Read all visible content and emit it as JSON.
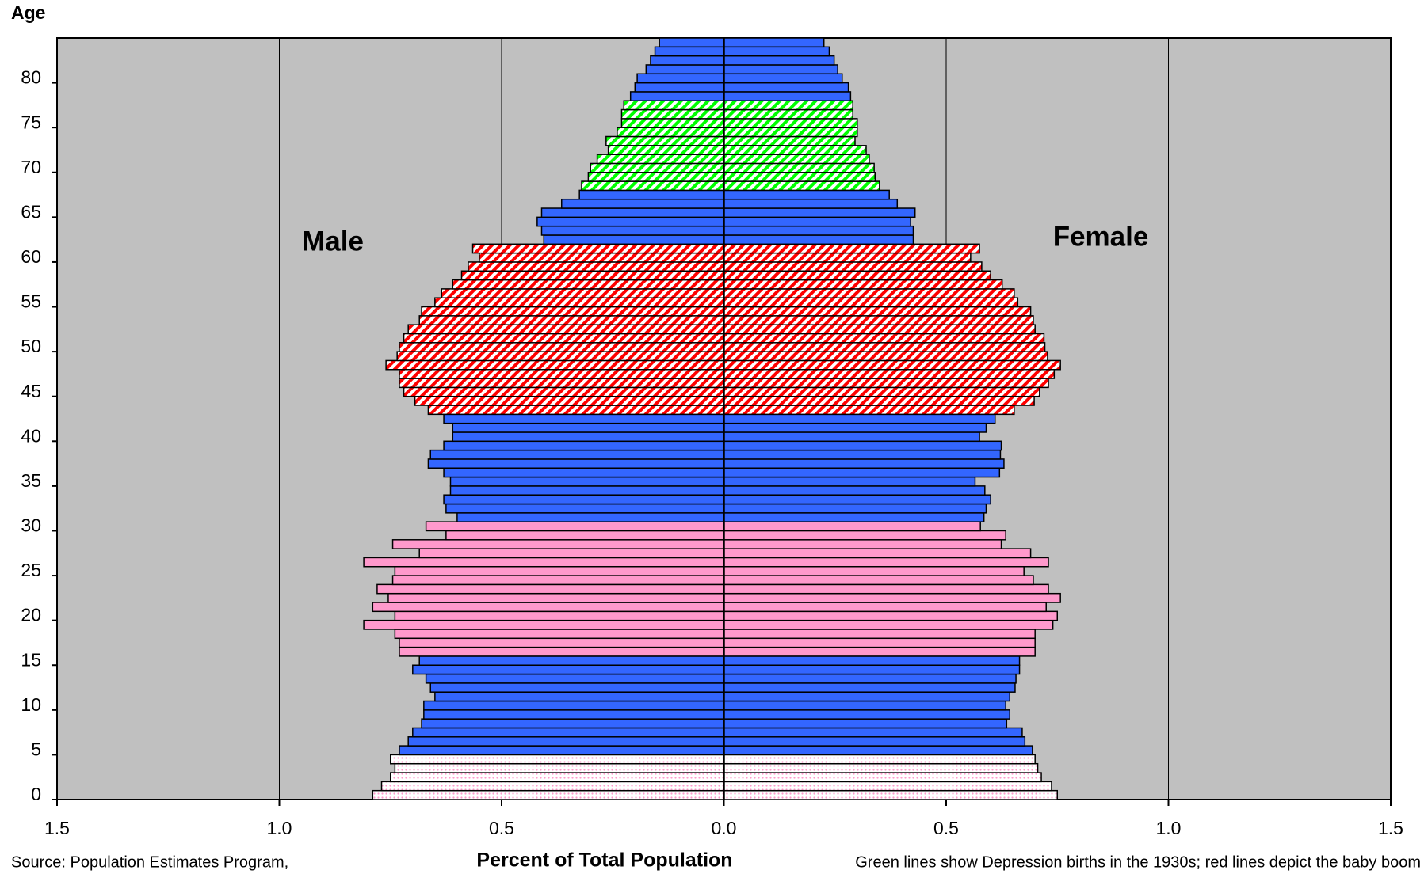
{
  "chart_data": {
    "type": "population-pyramid",
    "y_label": "Age",
    "x_label": "Percent of Total Population",
    "source": "Source: Population Estimates Program,",
    "note": "Green lines show Depression births in the 1930s; red lines depict the baby boom",
    "xlim": [
      -1.5,
      1.5
    ],
    "xticks": [
      {
        "value": -1.5,
        "label": "1.5"
      },
      {
        "value": -1,
        "label": "1.0"
      },
      {
        "value": -0.5,
        "label": "0.5"
      },
      {
        "value": 0,
        "label": "0.0"
      },
      {
        "value": 0.5,
        "label": "0.5"
      },
      {
        "value": 1,
        "label": "1.0"
      },
      {
        "value": 1.5,
        "label": "1.5"
      }
    ],
    "ylim": [
      0,
      85
    ],
    "yticks": [
      0,
      5,
      10,
      15,
      20,
      25,
      30,
      35,
      40,
      45,
      50,
      55,
      60,
      65,
      70,
      75,
      80
    ],
    "grid": true,
    "plot_color": "#c0c0c0",
    "hatched_colors": [
      "#ff0000",
      "#00ff00"
    ],
    "dotted_colors": [
      "#ff99cc"
    ],
    "ages": [
      0,
      1,
      2,
      3,
      4,
      5,
      6,
      7,
      8,
      9,
      10,
      11,
      12,
      13,
      14,
      15,
      16,
      17,
      18,
      19,
      20,
      21,
      22,
      23,
      24,
      25,
      26,
      27,
      28,
      29,
      30,
      31,
      32,
      33,
      34,
      35,
      36,
      37,
      38,
      39,
      40,
      41,
      42,
      43,
      44,
      45,
      46,
      47,
      48,
      49,
      50,
      51,
      52,
      53,
      54,
      55,
      56,
      57,
      58,
      59,
      60,
      61,
      62,
      63,
      64,
      65,
      66,
      67,
      68,
      69,
      70,
      71,
      72,
      73,
      74,
      75,
      76,
      77,
      78,
      79,
      80,
      81,
      82,
      83,
      84
    ],
    "bar_colors": [
      "#ff99cc",
      "#ff99cc",
      "#ff99cc",
      "#ff99cc",
      "#ff99cc",
      "#3366ff",
      "#3366ff",
      "#3366ff",
      "#3366ff",
      "#3366ff",
      "#3366ff",
      "#3366ff",
      "#3366ff",
      "#3366ff",
      "#3366ff",
      "#3366ff",
      "#ff99cc",
      "#ff99cc",
      "#ff99cc",
      "#ff99cc",
      "#ff99cc",
      "#ff99cc",
      "#ff99cc",
      "#ff99cc",
      "#ff99cc",
      "#ff99cc",
      "#ff99cc",
      "#ff99cc",
      "#ff99cc",
      "#ff99cc",
      "#ff99cc",
      "#3366ff",
      "#3366ff",
      "#3366ff",
      "#3366ff",
      "#3366ff",
      "#3366ff",
      "#3366ff",
      "#3366ff",
      "#3366ff",
      "#3366ff",
      "#3366ff",
      "#3366ff",
      "#ff0000",
      "#ff0000",
      "#ff0000",
      "#ff0000",
      "#ff0000",
      "#ff0000",
      "#ff0000",
      "#ff0000",
      "#ff0000",
      "#ff0000",
      "#ff0000",
      "#ff0000",
      "#ff0000",
      "#ff0000",
      "#ff0000",
      "#ff0000",
      "#ff0000",
      "#ff0000",
      "#ff0000",
      "#3366ff",
      "#3366ff",
      "#3366ff",
      "#3366ff",
      "#3366ff",
      "#3366ff",
      "#00ff00",
      "#00ff00",
      "#00ff00",
      "#00ff00",
      "#00ff00",
      "#00ff00",
      "#00ff00",
      "#00ff00",
      "#00ff00",
      "#00ff00",
      "#3366ff",
      "#3366ff",
      "#3366ff",
      "#3366ff",
      "#3366ff",
      "#3366ff",
      "#3366ff"
    ],
    "dotted_flags": [
      true,
      true,
      true,
      true,
      true,
      false,
      false,
      false,
      false,
      false,
      false,
      false,
      false,
      false,
      false,
      false,
      false,
      false,
      false,
      false,
      false,
      false,
      false,
      false,
      false,
      false,
      false,
      false,
      false,
      false,
      false,
      false,
      false,
      false,
      false,
      false,
      false,
      false,
      false,
      false,
      false,
      false,
      false,
      false,
      false,
      false,
      false,
      false,
      false,
      false,
      false,
      false,
      false,
      false,
      false,
      false,
      false,
      false,
      false,
      false,
      false,
      false,
      false,
      false,
      false,
      false,
      false,
      false,
      false,
      false,
      false,
      false,
      false,
      false,
      false,
      false,
      false,
      false,
      false,
      false,
      false,
      false,
      false,
      false,
      false
    ],
    "series": [
      {
        "name": "Male",
        "values": [
          0.79,
          0.77,
          0.75,
          0.74,
          0.75,
          0.73,
          0.71,
          0.7,
          0.68,
          0.675,
          0.675,
          0.65,
          0.66,
          0.67,
          0.7,
          0.685,
          0.73,
          0.73,
          0.74,
          0.81,
          0.74,
          0.79,
          0.755,
          0.78,
          0.745,
          0.74,
          0.81,
          0.685,
          0.745,
          0.625,
          0.67,
          0.6,
          0.625,
          0.63,
          0.615,
          0.615,
          0.63,
          0.665,
          0.66,
          0.63,
          0.61,
          0.61,
          0.63,
          0.665,
          0.695,
          0.72,
          0.73,
          0.73,
          0.76,
          0.735,
          0.73,
          0.72,
          0.71,
          0.685,
          0.68,
          0.65,
          0.635,
          0.61,
          0.59,
          0.575,
          0.55,
          0.565,
          0.405,
          0.41,
          0.42,
          0.41,
          0.365,
          0.325,
          0.32,
          0.305,
          0.3,
          0.285,
          0.26,
          0.265,
          0.24,
          0.23,
          0.23,
          0.225,
          0.21,
          0.2,
          0.195,
          0.175,
          0.165,
          0.155,
          0.145
        ]
      },
      {
        "name": "Female",
        "values": [
          0.75,
          0.737,
          0.714,
          0.706,
          0.7,
          0.694,
          0.677,
          0.671,
          0.636,
          0.643,
          0.634,
          0.643,
          0.655,
          0.657,
          0.665,
          0.665,
          0.7,
          0.7,
          0.7,
          0.74,
          0.75,
          0.725,
          0.757,
          0.73,
          0.696,
          0.675,
          0.73,
          0.69,
          0.624,
          0.634,
          0.577,
          0.585,
          0.59,
          0.6,
          0.587,
          0.565,
          0.62,
          0.63,
          0.622,
          0.624,
          0.575,
          0.59,
          0.61,
          0.653,
          0.698,
          0.71,
          0.73,
          0.743,
          0.757,
          0.728,
          0.722,
          0.72,
          0.7,
          0.696,
          0.69,
          0.661,
          0.653,
          0.626,
          0.6,
          0.58,
          0.555,
          0.575,
          0.426,
          0.426,
          0.42,
          0.43,
          0.39,
          0.372,
          0.35,
          0.34,
          0.338,
          0.327,
          0.32,
          0.295,
          0.3,
          0.3,
          0.29,
          0.29,
          0.285,
          0.28,
          0.266,
          0.256,
          0.248,
          0.237,
          0.225
        ]
      }
    ]
  }
}
